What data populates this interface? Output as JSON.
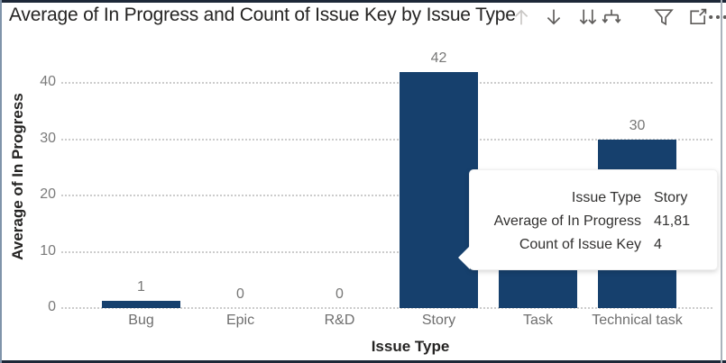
{
  "header": {
    "title": "Average of In Progress and Count of Issue Key by Issue Type",
    "icons": [
      {
        "name": "drill-up-icon",
        "disabled": true
      },
      {
        "name": "drill-down-icon",
        "disabled": false
      },
      {
        "name": "go-to-next-level-icon",
        "disabled": false
      },
      {
        "name": "expand-all-icon",
        "disabled": false
      },
      {
        "name": "filter-icon",
        "disabled": false
      },
      {
        "name": "focus-mode-icon",
        "disabled": false
      },
      {
        "name": "more-options-icon",
        "disabled": false
      }
    ]
  },
  "chart_data": {
    "type": "bar",
    "title": "Average of In Progress and Count of Issue Key by Issue Type",
    "xlabel": "Issue Type",
    "ylabel": "Average of In Progress",
    "categories": [
      "Bug",
      "Epic",
      "R&D",
      "Story",
      "Task",
      "Technical task"
    ],
    "values": [
      1,
      0,
      0,
      42,
      null,
      30
    ],
    "data_labels": [
      "1",
      "0",
      "0",
      "42",
      null,
      "30"
    ],
    "ylim": [
      0,
      45
    ],
    "yticks": [
      0,
      10,
      20,
      30,
      40
    ],
    "grid": "horizontal-dotted",
    "legend": "none",
    "bar_color": "#16406D"
  },
  "tooltip": {
    "rows": [
      {
        "label": "Issue Type",
        "value": "Story"
      },
      {
        "label": "Average of In Progress",
        "value": "41,81"
      },
      {
        "label": "Count of Issue Key",
        "value": "4"
      }
    ]
  }
}
